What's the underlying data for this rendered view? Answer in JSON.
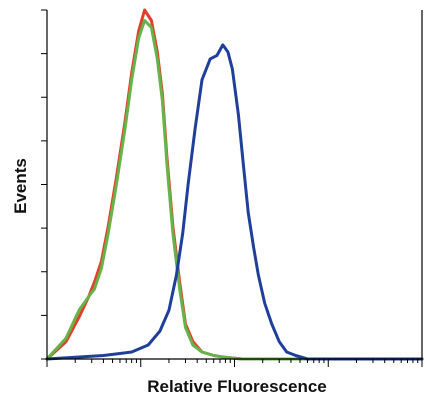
{
  "chart_data": {
    "type": "line",
    "title": "",
    "xlabel": "Relative Fluorescence",
    "ylabel": "Events",
    "x_scale": "log",
    "xlim": [
      1,
      10000
    ],
    "ylim": [
      0,
      100
    ],
    "grid": false,
    "legend": "none",
    "y_ticks": [
      0,
      12.5,
      25,
      37.5,
      50,
      62.5,
      75,
      87.5,
      100
    ],
    "series": [
      {
        "color": "#e0402a",
        "x": [
          1.0,
          1.6,
          2.2,
          2.8,
          3.2,
          3.8,
          4.5,
          5.5,
          6.8,
          8.0,
          9.5,
          11,
          13,
          15,
          17,
          19,
          22,
          26,
          30,
          36,
          45,
          60,
          80,
          120,
          200,
          500,
          1000,
          3000,
          10000
        ],
        "y": [
          0,
          5,
          12,
          18,
          22,
          28,
          38,
          52,
          68,
          82,
          94,
          100,
          97,
          88,
          76,
          58,
          38,
          22,
          10,
          5,
          2,
          1,
          0.5,
          0,
          0,
          0,
          0,
          0,
          0
        ]
      },
      {
        "color": "#66b34a",
        "x": [
          1.0,
          1.6,
          2.2,
          2.8,
          3.2,
          3.8,
          4.5,
          5.5,
          6.8,
          8.0,
          9.5,
          11,
          13,
          15,
          17,
          19,
          22,
          26,
          30,
          36,
          45,
          60,
          80,
          120,
          200,
          500,
          1000,
          3000,
          10000
        ],
        "y": [
          0,
          6,
          14,
          18,
          20,
          26,
          36,
          50,
          66,
          80,
          92,
          97,
          95,
          86,
          74,
          56,
          36,
          20,
          9,
          4,
          2,
          1,
          0.5,
          0,
          0,
          0,
          0,
          0,
          0
        ]
      },
      {
        "color": "#1f3f9a",
        "x": [
          1.0,
          2,
          4,
          8,
          12,
          16,
          20,
          24,
          28,
          32,
          38,
          45,
          55,
          65,
          75,
          85,
          95,
          110,
          125,
          140,
          160,
          180,
          210,
          250,
          300,
          360,
          450,
          600,
          1000,
          3000,
          10000
        ],
        "y": [
          0,
          0.5,
          1,
          2,
          4,
          8,
          14,
          24,
          36,
          50,
          66,
          80,
          86,
          87,
          90,
          88,
          83,
          70,
          55,
          42,
          32,
          24,
          16,
          10,
          5,
          2,
          1,
          0,
          0,
          0,
          0
        ]
      }
    ]
  }
}
